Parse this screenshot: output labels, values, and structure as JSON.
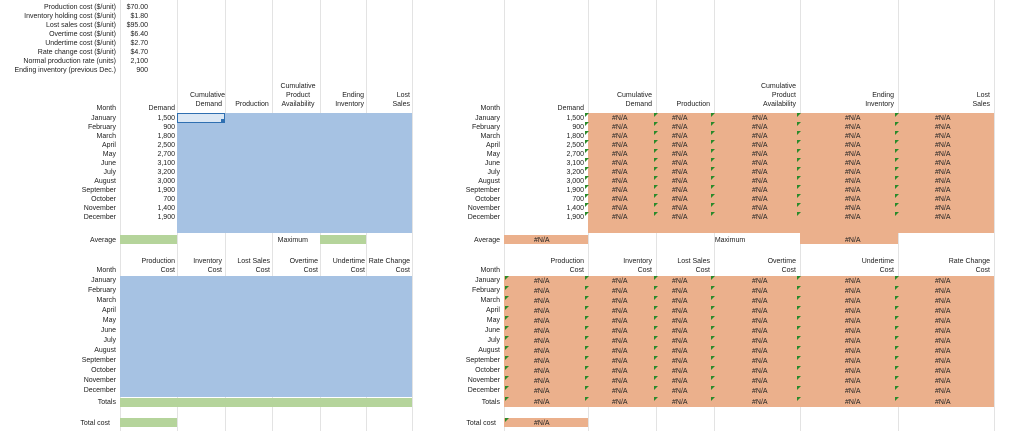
{
  "params": [
    {
      "label": "Production cost ($/unit)",
      "value": "$70.00"
    },
    {
      "label": "Inventory holding cost ($/unit)",
      "value": "$1.80"
    },
    {
      "label": "Lost sales cost ($/unit)",
      "value": "$95.00"
    },
    {
      "label": "Overtime cost ($/unit)",
      "value": "$6.40"
    },
    {
      "label": "Undertime cost ($/unit)",
      "value": "$2.70"
    },
    {
      "label": "Rate change cost ($/unit)",
      "value": "$4.70"
    },
    {
      "label": "Normal production rate (units)",
      "value": "2,100"
    },
    {
      "label": "Ending inventory (previous Dec.)",
      "value": "900"
    }
  ],
  "months": [
    "January",
    "February",
    "March",
    "April",
    "May",
    "June",
    "July",
    "August",
    "September",
    "October",
    "November",
    "December"
  ],
  "demand": [
    "1,500",
    "900",
    "1,800",
    "2,500",
    "2,700",
    "3,100",
    "3,200",
    "3,000",
    "1,900",
    "700",
    "1,400",
    "1,900"
  ],
  "left_top": {
    "h_month": "Month",
    "h_demand": "Demand",
    "h_cum_demand_1": "Cumulative",
    "h_cum_demand_2": "Demand",
    "h_production": "Production",
    "h_cpa_1": "Cumulative",
    "h_cpa_2": "Product",
    "h_cpa_3": "Availability",
    "h_end_inv_1": "Ending",
    "h_end_inv_2": "Inventory",
    "h_lost_1": "Lost",
    "h_lost_2": "Sales",
    "average": "Average",
    "maximum": "Maximum"
  },
  "left_bottom": {
    "h_month": "Month",
    "h_prod_1": "Production",
    "h_prod_2": "Cost",
    "h_inv_1": "Inventory",
    "h_inv_2": "Cost",
    "h_lost_1": "Lost Sales",
    "h_lost_2": "Cost",
    "h_ot_1": "Overtime",
    "h_ot_2": "Cost",
    "h_ut_1": "Undertime",
    "h_ut_2": "Cost",
    "h_rc_1": "Rate Change",
    "h_rc_2": "Cost",
    "totals": "Totals",
    "total_cost": "Total cost"
  },
  "na": "#N/A",
  "colors": {
    "blue": "#a6c2e3",
    "green": "#b5d49b",
    "orange": "#ebb08c",
    "error_triangle": "#2a8a2a"
  }
}
